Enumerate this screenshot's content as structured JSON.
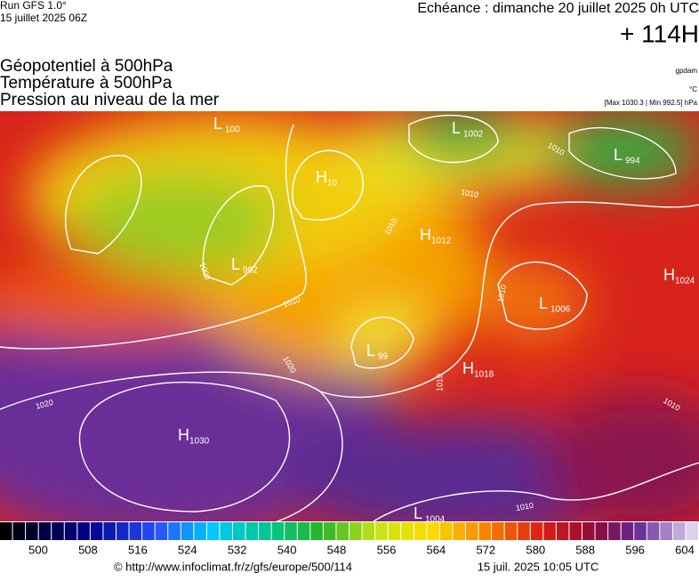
{
  "header": {
    "run": "Run GFS 1.0°",
    "date": "15 juillet 2025 06Z",
    "echeance": "Echéance : dimanche 20 juillet 2025 0h UTC",
    "lead": "+ 114H"
  },
  "titles": [
    "Géopotentiel à 500hPa",
    "Température à 500hPa",
    "Pression au niveau de la mer"
  ],
  "units": {
    "geo": "gpdam",
    "temp": "°C",
    "pressure": "[Max 1030.3 | Min 992.5] hPa"
  },
  "pressure_centers": [
    {
      "letter": "L",
      "value": 1002
    },
    {
      "letter": "L",
      "value": 994
    },
    {
      "letter": "L",
      "value": 100
    },
    {
      "letter": "H",
      "value": 10
    },
    {
      "letter": "H",
      "value": 1012
    },
    {
      "letter": "H",
      "value": 1024
    },
    {
      "letter": "L",
      "value": 992
    },
    {
      "letter": "L",
      "value": 1006
    },
    {
      "letter": "L",
      "value": 99
    },
    {
      "letter": "H",
      "value": 1018
    },
    {
      "letter": "H",
      "value": 1030
    },
    {
      "letter": "L",
      "value": 1004
    }
  ],
  "isobar_labels": [
    1010,
    1010,
    1010,
    1010,
    1020,
    1020,
    1010,
    1010,
    1010,
    1010,
    1000
  ],
  "colorbar_ticks": [
    500,
    508,
    516,
    524,
    532,
    540,
    548,
    556,
    564,
    572,
    580,
    588,
    596,
    604
  ],
  "footer": {
    "url": "© http://www.infoclimat.fr/z/gfs/europe/500/114",
    "timestamp": "15 juil. 2025 10:05 UTC"
  }
}
